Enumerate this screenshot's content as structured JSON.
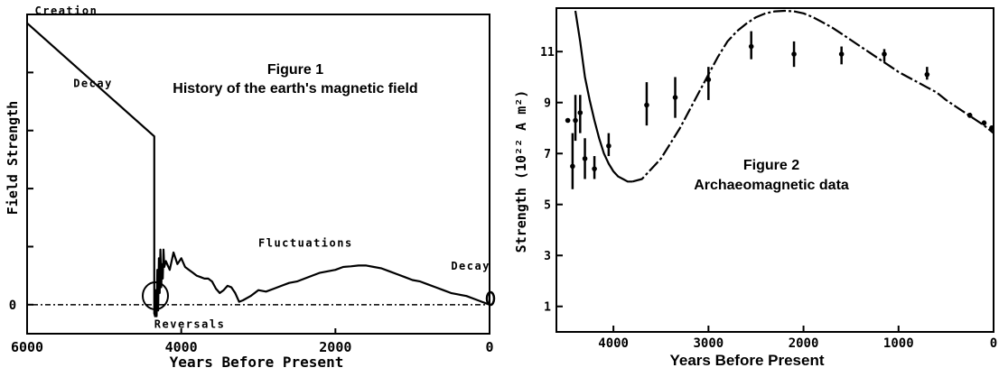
{
  "chart_data": [
    {
      "type": "line",
      "title": "Figure 1",
      "subtitle": "History of the earth's magnetic field",
      "xlabel": "Years Before Present",
      "ylabel": "Field Strength",
      "x_reversed": true,
      "xlim": [
        6000,
        0
      ],
      "ylim": [
        -1,
        10
      ],
      "x_ticks": [
        6000,
        4000,
        2000,
        0
      ],
      "x_tick_labels": [
        "6000",
        "4000",
        "2000",
        "0"
      ],
      "y_ticks": [
        0,
        2,
        4,
        6,
        8
      ],
      "y_tick_labels": [
        "0"
      ],
      "zero_label": "0",
      "grid": false,
      "series": [
        {
          "name": "",
          "x": [
            6000,
            4350,
            4350,
            4340,
            4330,
            4320,
            4310,
            4300,
            4290,
            4280,
            4270,
            4260,
            4250,
            4240,
            4230,
            4220,
            4200,
            4150,
            4100,
            4050,
            4000,
            3950,
            3900,
            3850,
            3800,
            3750,
            3700,
            3650,
            3600,
            3550,
            3500,
            3450,
            3400,
            3350,
            3300,
            3250,
            3200,
            3100,
            3000,
            2900,
            2800,
            2700,
            2600,
            2500,
            2400,
            2300,
            2200,
            2100,
            2000,
            1900,
            1800,
            1700,
            1600,
            1500,
            1400,
            1300,
            1200,
            1100,
            1000,
            900,
            800,
            700,
            600,
            500,
            400,
            300,
            200,
            100,
            0
          ],
          "y": [
            9.7,
            5.8,
            -0.3,
            -0.4,
            0.5,
            -0.4,
            1.2,
            -0.2,
            1.6,
            0.4,
            1.9,
            0.6,
            1.4,
            0.9,
            1.9,
            1.3,
            1.5,
            1.2,
            1.8,
            1.4,
            1.6,
            1.3,
            1.2,
            1.1,
            1.0,
            0.95,
            0.9,
            0.9,
            0.8,
            0.55,
            0.4,
            0.5,
            0.65,
            0.6,
            0.4,
            0.1,
            0.15,
            0.3,
            0.5,
            0.45,
            0.55,
            0.65,
            0.75,
            0.8,
            0.9,
            1.0,
            1.1,
            1.15,
            1.2,
            1.3,
            1.32,
            1.35,
            1.35,
            1.3,
            1.25,
            1.15,
            1.05,
            0.95,
            0.85,
            0.8,
            0.7,
            0.6,
            0.5,
            0.4,
            0.35,
            0.3,
            0.2,
            0.1,
            0.0
          ]
        }
      ],
      "annotations": [
        {
          "text": "Creation",
          "x": 5900,
          "y": 10.0
        },
        {
          "text": "Decay",
          "x": 5400,
          "y": 7.5
        },
        {
          "text": "Fluctuations",
          "x": 3000,
          "y": 2.0
        },
        {
          "text": "Decay",
          "x": 500,
          "y": 1.2
        },
        {
          "text": "Reversals",
          "x": 4350,
          "y": -0.8
        }
      ]
    },
    {
      "type": "scatter",
      "title": "Figure 2",
      "subtitle": "Archaeomagnetic data",
      "xlabel": "Years Before Present",
      "ylabel": "Strength  (10²² A m²)",
      "x_reversed": true,
      "xlim": [
        4600,
        0
      ],
      "ylim": [
        0,
        12.6
      ],
      "x_ticks": [
        4000,
        3000,
        2000,
        1000,
        0
      ],
      "x_tick_labels": [
        "4000",
        "3000",
        "2000",
        "1000",
        "0"
      ],
      "y_ticks": [
        1,
        3,
        5,
        7,
        9,
        11
      ],
      "y_tick_labels": [
        "1",
        "3",
        "5",
        "7",
        "9",
        "11"
      ],
      "grid": false,
      "points": [
        {
          "x": 4480,
          "y": 8.3,
          "low": 8.3,
          "high": 8.3
        },
        {
          "x": 4430,
          "y": 6.5,
          "low": 5.6,
          "high": 7.8
        },
        {
          "x": 4400,
          "y": 8.3,
          "low": 7.5,
          "high": 9.3
        },
        {
          "x": 4350,
          "y": 8.6,
          "low": 7.8,
          "high": 9.3
        },
        {
          "x": 4300,
          "y": 6.8,
          "low": 6.0,
          "high": 7.6
        },
        {
          "x": 4200,
          "y": 6.4,
          "low": 6.0,
          "high": 6.9
        },
        {
          "x": 4050,
          "y": 7.3,
          "low": 6.9,
          "high": 7.8
        },
        {
          "x": 3650,
          "y": 8.9,
          "low": 8.1,
          "high": 9.8
        },
        {
          "x": 3350,
          "y": 9.2,
          "low": 8.4,
          "high": 10.0
        },
        {
          "x": 3000,
          "y": 9.9,
          "low": 9.1,
          "high": 10.4
        },
        {
          "x": 2550,
          "y": 11.2,
          "low": 10.7,
          "high": 11.8
        },
        {
          "x": 2100,
          "y": 10.9,
          "low": 10.4,
          "high": 11.4
        },
        {
          "x": 1600,
          "y": 10.9,
          "low": 10.5,
          "high": 11.2
        },
        {
          "x": 1150,
          "y": 10.9,
          "low": 10.6,
          "high": 11.1
        },
        {
          "x": 700,
          "y": 10.1,
          "low": 9.9,
          "high": 10.4
        },
        {
          "x": 250,
          "y": 8.5,
          "low": 8.4,
          "high": 8.6
        },
        {
          "x": 100,
          "y": 8.2,
          "low": 8.1,
          "high": 8.3
        },
        {
          "x": 20,
          "y": 8.0,
          "low": 7.9,
          "high": 8.1
        }
      ],
      "series": [
        {
          "name": "",
          "x": [
            4400,
            4350,
            4300,
            4250,
            4200,
            4150,
            4100,
            4050,
            4000,
            3950,
            3900,
            3850,
            3800
          ],
          "y": [
            12.6,
            11.4,
            10.0,
            9.1,
            8.3,
            7.6,
            7.0,
            6.6,
            6.3,
            6.1,
            6.0,
            5.9,
            5.9
          ]
        },
        {
          "name": "",
          "x": [
            3800,
            3700,
            3600,
            3500,
            3400,
            3300,
            3200,
            3100,
            3000,
            2900,
            2800,
            2700,
            2600,
            2500,
            2400,
            2300,
            2200,
            2100,
            2000,
            1900,
            1800,
            1700,
            1600,
            1500,
            1400,
            1300,
            1200,
            1100,
            1000,
            900,
            800,
            700,
            600,
            500,
            400,
            300,
            200,
            100,
            0
          ],
          "y": [
            5.9,
            6.0,
            6.4,
            6.8,
            7.4,
            8.0,
            8.7,
            9.4,
            10.1,
            10.8,
            11.4,
            11.8,
            12.1,
            12.35,
            12.5,
            12.58,
            12.6,
            12.58,
            12.5,
            12.35,
            12.15,
            11.95,
            11.7,
            11.45,
            11.2,
            10.95,
            10.7,
            10.45,
            10.2,
            10.0,
            9.8,
            9.6,
            9.4,
            9.1,
            8.85,
            8.6,
            8.35,
            8.1,
            7.8
          ]
        }
      ]
    }
  ]
}
